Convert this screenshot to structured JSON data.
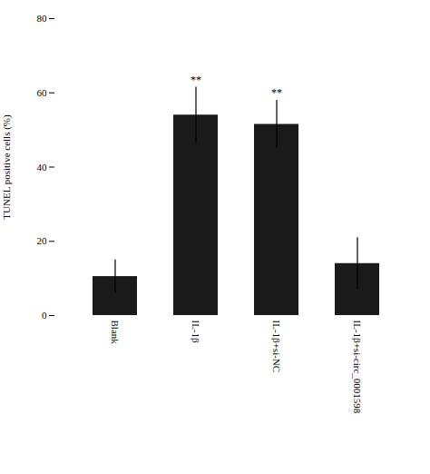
{
  "chart_data": {
    "type": "bar",
    "categories": [
      "Blank",
      "IL-1β",
      "IL-1β+si-NC",
      "IL-1β+si-circ_0001598"
    ],
    "values": [
      10.5,
      54.0,
      51.5,
      14.0
    ],
    "errors": [
      4.5,
      7.5,
      6.5,
      7.0
    ],
    "color": "#1a1a1a",
    "ylim": [
      0,
      80
    ],
    "yticks": [
      0,
      20,
      40,
      60,
      80
    ],
    "ylabel": "TUNEL positive cells (%)",
    "annotations": [
      {
        "category": "IL-1β",
        "text": "**"
      },
      {
        "category": "IL-1β+si-NC",
        "text": "**"
      }
    ],
    "grid": false
  }
}
